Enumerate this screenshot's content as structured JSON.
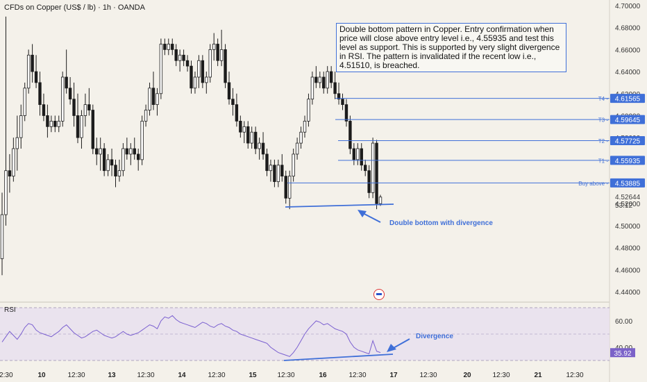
{
  "title": "CFDs on Copper (US$ / lb) · 1h · OANDA",
  "annotation_text": "Double bottom pattern in Copper. Entry confirmation when price will close above entry level i.e., 4.55935 and test this level as support. This is supported by very slight divergence in RSI. The pattern is invalidated if the recent low i.e., 4.51510, is breached.",
  "rsi_label": "RSI",
  "colors": {
    "background": "#f4f1ea",
    "candle": "#1c1c1c",
    "level_line": "#3f6fd8",
    "label_bg": "#3f6fd8",
    "rsi_line": "#7a5fd0",
    "rsi_band": "#e7e0ef",
    "price_tag": "#3d3d3d",
    "rsi_tag": "#7b62c8",
    "divergence_arrow": "#3f6fd8"
  },
  "chart_data": {
    "type": "candlestick",
    "price_axis": {
      "ylim": [
        4.44,
        4.7
      ],
      "ticks": [
        "4.70000",
        "4.68000",
        "4.66000",
        "4.64000",
        "4.62000",
        "4.60000",
        "4.58000",
        "4.56000",
        "4.54000",
        "4.52000",
        "4.50000",
        "4.48000",
        "4.46000",
        "4.44000"
      ]
    },
    "x_axis_ticks": [
      "12:30",
      "10",
      "12:30",
      "13",
      "12:30",
      "14",
      "12:30",
      "15",
      "12:30",
      "16",
      "12:30",
      "17",
      "12:30",
      "20",
      "12:30",
      "21",
      "12:30"
    ],
    "levels": [
      {
        "name": "T4",
        "value": 4.61565,
        "label": "4.61565"
      },
      {
        "name": "T3",
        "value": 4.59645,
        "label": "4.59645"
      },
      {
        "name": "T2",
        "value": 4.57725,
        "label": "4.57725"
      },
      {
        "name": "T1",
        "value": 4.55935,
        "label": "4.55935"
      },
      {
        "name": "Buy above",
        "value": 4.53885,
        "label": "4.53885"
      }
    ],
    "current_price": {
      "value": 4.52644,
      "label": "4.52644",
      "countdown": "53:12"
    },
    "support_line_label": "Double bottom with divergence",
    "candles": [
      {
        "o": 4.47,
        "h": 4.53,
        "l": 4.455,
        "c": 4.51
      },
      {
        "o": 4.51,
        "h": 4.69,
        "l": 4.5,
        "c": 4.55
      },
      {
        "o": 4.55,
        "h": 4.565,
        "l": 4.53,
        "c": 4.545
      },
      {
        "o": 4.545,
        "h": 4.58,
        "l": 4.54,
        "c": 4.57
      },
      {
        "o": 4.57,
        "h": 4.6,
        "l": 4.55,
        "c": 4.58
      },
      {
        "o": 4.58,
        "h": 4.61,
        "l": 4.57,
        "c": 4.6
      },
      {
        "o": 4.6,
        "h": 4.63,
        "l": 4.595,
        "c": 4.625
      },
      {
        "o": 4.625,
        "h": 4.66,
        "l": 4.62,
        "c": 4.655
      },
      {
        "o": 4.655,
        "h": 4.665,
        "l": 4.63,
        "c": 4.64
      },
      {
        "o": 4.64,
        "h": 4.655,
        "l": 4.625,
        "c": 4.63
      },
      {
        "o": 4.63,
        "h": 4.64,
        "l": 4.6,
        "c": 4.61
      },
      {
        "o": 4.61,
        "h": 4.62,
        "l": 4.595,
        "c": 4.6
      },
      {
        "o": 4.6,
        "h": 4.61,
        "l": 4.58,
        "c": 4.59
      },
      {
        "o": 4.59,
        "h": 4.6,
        "l": 4.585,
        "c": 4.595
      },
      {
        "o": 4.595,
        "h": 4.6,
        "l": 4.585,
        "c": 4.59
      },
      {
        "o": 4.59,
        "h": 4.6,
        "l": 4.585,
        "c": 4.595
      },
      {
        "o": 4.595,
        "h": 4.64,
        "l": 4.59,
        "c": 4.635
      },
      {
        "o": 4.635,
        "h": 4.66,
        "l": 4.62,
        "c": 4.625
      },
      {
        "o": 4.625,
        "h": 4.635,
        "l": 4.61,
        "c": 4.615
      },
      {
        "o": 4.615,
        "h": 4.63,
        "l": 4.59,
        "c": 4.6
      },
      {
        "o": 4.6,
        "h": 4.62,
        "l": 4.575,
        "c": 4.58
      },
      {
        "o": 4.58,
        "h": 4.605,
        "l": 4.57,
        "c": 4.6
      },
      {
        "o": 4.6,
        "h": 4.62,
        "l": 4.59,
        "c": 4.61
      },
      {
        "o": 4.61,
        "h": 4.625,
        "l": 4.6,
        "c": 4.605
      },
      {
        "o": 4.605,
        "h": 4.61,
        "l": 4.565,
        "c": 4.57
      },
      {
        "o": 4.57,
        "h": 4.58,
        "l": 4.555,
        "c": 4.565
      },
      {
        "o": 4.565,
        "h": 4.58,
        "l": 4.55,
        "c": 4.57
      },
      {
        "o": 4.57,
        "h": 4.575,
        "l": 4.545,
        "c": 4.55
      },
      {
        "o": 4.55,
        "h": 4.565,
        "l": 4.545,
        "c": 4.56
      },
      {
        "o": 4.56,
        "h": 4.57,
        "l": 4.545,
        "c": 4.555
      },
      {
        "o": 4.555,
        "h": 4.56,
        "l": 4.535,
        "c": 4.545
      },
      {
        "o": 4.545,
        "h": 4.56,
        "l": 4.54,
        "c": 4.55
      },
      {
        "o": 4.55,
        "h": 4.575,
        "l": 4.545,
        "c": 4.57
      },
      {
        "o": 4.57,
        "h": 4.58,
        "l": 4.56,
        "c": 4.565
      },
      {
        "o": 4.565,
        "h": 4.575,
        "l": 4.555,
        "c": 4.57
      },
      {
        "o": 4.57,
        "h": 4.58,
        "l": 4.56,
        "c": 4.565
      },
      {
        "o": 4.565,
        "h": 4.57,
        "l": 4.55,
        "c": 4.56
      },
      {
        "o": 4.56,
        "h": 4.6,
        "l": 4.555,
        "c": 4.595
      },
      {
        "o": 4.595,
        "h": 4.61,
        "l": 4.59,
        "c": 4.605
      },
      {
        "o": 4.605,
        "h": 4.63,
        "l": 4.6,
        "c": 4.625
      },
      {
        "o": 4.625,
        "h": 4.64,
        "l": 4.605,
        "c": 4.61
      },
      {
        "o": 4.61,
        "h": 4.625,
        "l": 4.6,
        "c": 4.62
      },
      {
        "o": 4.62,
        "h": 4.67,
        "l": 4.615,
        "c": 4.665
      },
      {
        "o": 4.665,
        "h": 4.67,
        "l": 4.655,
        "c": 4.66
      },
      {
        "o": 4.66,
        "h": 4.67,
        "l": 4.655,
        "c": 4.665
      },
      {
        "o": 4.665,
        "h": 4.67,
        "l": 4.655,
        "c": 4.66
      },
      {
        "o": 4.66,
        "h": 4.665,
        "l": 4.645,
        "c": 4.65
      },
      {
        "o": 4.65,
        "h": 4.66,
        "l": 4.64,
        "c": 4.655
      },
      {
        "o": 4.655,
        "h": 4.66,
        "l": 4.645,
        "c": 4.65
      },
      {
        "o": 4.65,
        "h": 4.655,
        "l": 4.64,
        "c": 4.645
      },
      {
        "o": 4.645,
        "h": 4.65,
        "l": 4.62,
        "c": 4.625
      },
      {
        "o": 4.625,
        "h": 4.64,
        "l": 4.62,
        "c": 4.635
      },
      {
        "o": 4.635,
        "h": 4.655,
        "l": 4.625,
        "c": 4.65
      },
      {
        "o": 4.65,
        "h": 4.655,
        "l": 4.625,
        "c": 4.63
      },
      {
        "o": 4.63,
        "h": 4.64,
        "l": 4.62,
        "c": 4.635
      },
      {
        "o": 4.635,
        "h": 4.665,
        "l": 4.63,
        "c": 4.66
      },
      {
        "o": 4.66,
        "h": 4.675,
        "l": 4.65,
        "c": 4.665
      },
      {
        "o": 4.665,
        "h": 4.67,
        "l": 4.645,
        "c": 4.65
      },
      {
        "o": 4.65,
        "h": 4.678,
        "l": 4.645,
        "c": 4.66
      },
      {
        "o": 4.66,
        "h": 4.665,
        "l": 4.625,
        "c": 4.63
      },
      {
        "o": 4.63,
        "h": 4.64,
        "l": 4.61,
        "c": 4.615
      },
      {
        "o": 4.615,
        "h": 4.625,
        "l": 4.6,
        "c": 4.61
      },
      {
        "o": 4.61,
        "h": 4.62,
        "l": 4.59,
        "c": 4.595
      },
      {
        "o": 4.595,
        "h": 4.6,
        "l": 4.58,
        "c": 4.585
      },
      {
        "o": 4.585,
        "h": 4.595,
        "l": 4.575,
        "c": 4.59
      },
      {
        "o": 4.59,
        "h": 4.595,
        "l": 4.57,
        "c": 4.575
      },
      {
        "o": 4.575,
        "h": 4.59,
        "l": 4.57,
        "c": 4.585
      },
      {
        "o": 4.585,
        "h": 4.59,
        "l": 4.565,
        "c": 4.57
      },
      {
        "o": 4.57,
        "h": 4.58,
        "l": 4.56,
        "c": 4.575
      },
      {
        "o": 4.575,
        "h": 4.585,
        "l": 4.56,
        "c": 4.565
      },
      {
        "o": 4.565,
        "h": 4.57,
        "l": 4.545,
        "c": 4.55
      },
      {
        "o": 4.55,
        "h": 4.56,
        "l": 4.54,
        "c": 4.555
      },
      {
        "o": 4.555,
        "h": 4.56,
        "l": 4.535,
        "c": 4.54
      },
      {
        "o": 4.54,
        "h": 4.56,
        "l": 4.535,
        "c": 4.555
      },
      {
        "o": 4.555,
        "h": 4.565,
        "l": 4.54,
        "c": 4.545
      },
      {
        "o": 4.545,
        "h": 4.55,
        "l": 4.52,
        "c": 4.525
      },
      {
        "o": 4.525,
        "h": 4.55,
        "l": 4.515,
        "c": 4.545
      },
      {
        "o": 4.545,
        "h": 4.57,
        "l": 4.54,
        "c": 4.565
      },
      {
        "o": 4.565,
        "h": 4.58,
        "l": 4.56,
        "c": 4.575
      },
      {
        "o": 4.575,
        "h": 4.59,
        "l": 4.57,
        "c": 4.585
      },
      {
        "o": 4.585,
        "h": 4.6,
        "l": 4.58,
        "c": 4.595
      },
      {
        "o": 4.595,
        "h": 4.62,
        "l": 4.59,
        "c": 4.615
      },
      {
        "o": 4.615,
        "h": 4.64,
        "l": 4.61,
        "c": 4.635
      },
      {
        "o": 4.635,
        "h": 4.645,
        "l": 4.625,
        "c": 4.63
      },
      {
        "o": 4.63,
        "h": 4.64,
        "l": 4.625,
        "c": 4.635
      },
      {
        "o": 4.635,
        "h": 4.64,
        "l": 4.62,
        "c": 4.625
      },
      {
        "o": 4.625,
        "h": 4.645,
        "l": 4.62,
        "c": 4.64
      },
      {
        "o": 4.64,
        "h": 4.645,
        "l": 4.625,
        "c": 4.63
      },
      {
        "o": 4.63,
        "h": 4.64,
        "l": 4.615,
        "c": 4.62
      },
      {
        "o": 4.62,
        "h": 4.63,
        "l": 4.61,
        "c": 4.615
      },
      {
        "o": 4.615,
        "h": 4.62,
        "l": 4.605,
        "c": 4.61
      },
      {
        "o": 4.61,
        "h": 4.615,
        "l": 4.59,
        "c": 4.595
      },
      {
        "o": 4.595,
        "h": 4.6,
        "l": 4.565,
        "c": 4.57
      },
      {
        "o": 4.57,
        "h": 4.575,
        "l": 4.555,
        "c": 4.56
      },
      {
        "o": 4.56,
        "h": 4.575,
        "l": 4.555,
        "c": 4.57
      },
      {
        "o": 4.57,
        "h": 4.575,
        "l": 4.55,
        "c": 4.555
      },
      {
        "o": 4.555,
        "h": 4.56,
        "l": 4.545,
        "c": 4.55
      },
      {
        "o": 4.55,
        "h": 4.555,
        "l": 4.525,
        "c": 4.53
      },
      {
        "o": 4.53,
        "h": 4.58,
        "l": 4.525,
        "c": 4.575
      },
      {
        "o": 4.575,
        "h": 4.578,
        "l": 4.515,
        "c": 4.52
      },
      {
        "o": 4.52,
        "h": 4.528,
        "l": 4.518,
        "c": 4.526
      }
    ],
    "rsi": {
      "label": "RSI",
      "ylim": [
        30,
        70
      ],
      "ticks": [
        "60.00",
        "40.00"
      ],
      "current": "35.92",
      "band": [
        30,
        70
      ],
      "divergence_label": "Divergence",
      "values": [
        44,
        48,
        52,
        49,
        46,
        50,
        55,
        58,
        57,
        53,
        51,
        50,
        49,
        48,
        50,
        52,
        55,
        57,
        54,
        51,
        49,
        47,
        48,
        50,
        52,
        53,
        51,
        49,
        48,
        47,
        48,
        50,
        52,
        50,
        49,
        50,
        51,
        53,
        55,
        57,
        56,
        54,
        60,
        63,
        62,
        64,
        61,
        59,
        58,
        57,
        56,
        55,
        57,
        59,
        58,
        56,
        55,
        57,
        58,
        56,
        55,
        53,
        52,
        50,
        49,
        48,
        47,
        46,
        45,
        44,
        43,
        40,
        38,
        36,
        35,
        34,
        33,
        36,
        40,
        45,
        50,
        54,
        57,
        60,
        59,
        57,
        58,
        56,
        54,
        53,
        52,
        50,
        44,
        40,
        38,
        37,
        36,
        35,
        45,
        37,
        36
      ]
    }
  }
}
